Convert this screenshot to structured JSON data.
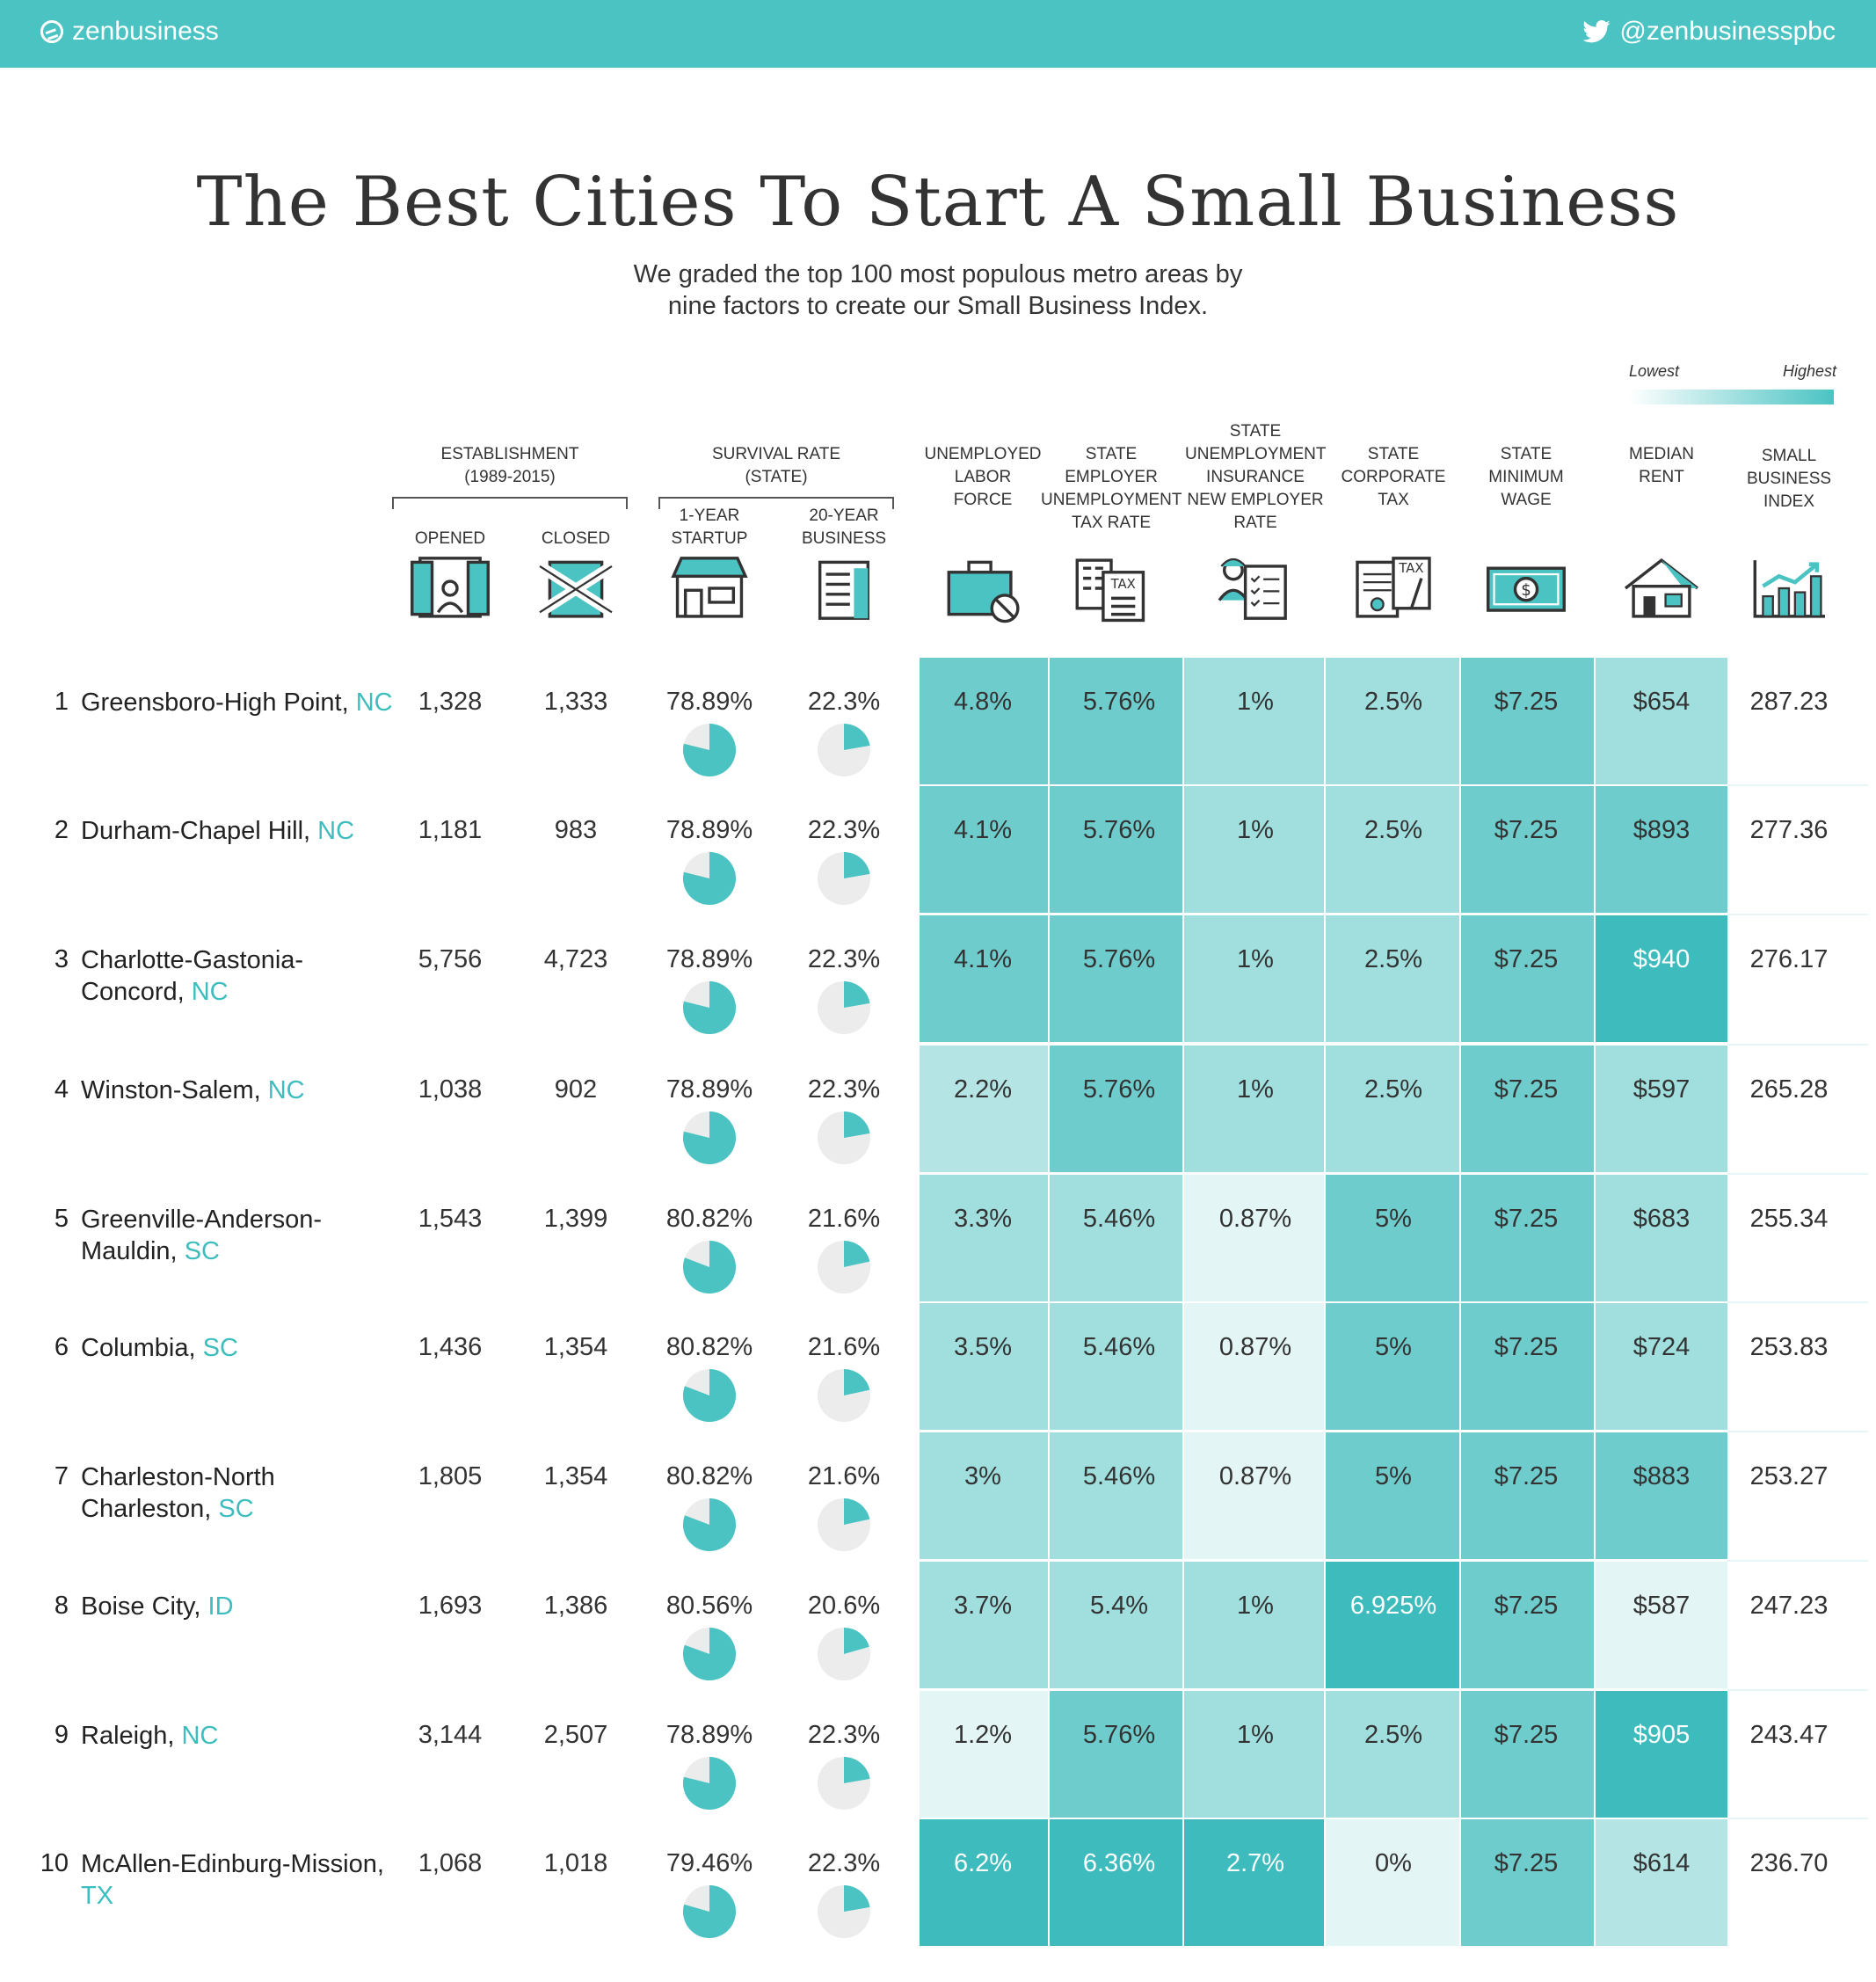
{
  "brand": "zenbusiness",
  "twitter": "@zenbusinesspbc",
  "title": "The Best Cities To Start A Small Business",
  "subtitle_line1": "We graded the top 100 most populous metro areas by",
  "subtitle_line2": "nine factors to create our Small Business Index.",
  "legend": {
    "low": "Lowest",
    "high": "Highest",
    "high_color": "#4bc3c3",
    "low_color": "#ffffff"
  },
  "headers": {
    "establishment": [
      "ESTABLISHMENT",
      "(1989-2015)"
    ],
    "survival": [
      "SURVIVAL RATE",
      "(STATE)"
    ],
    "opened": "OPENED",
    "closed": "CLOSED",
    "startup": [
      "1-YEAR",
      "STARTUP"
    ],
    "business": [
      "20-YEAR",
      "BUSINESS"
    ],
    "unemployed": [
      "UNEMPLOYED",
      "LABOR",
      "FORCE"
    ],
    "employer_tax": [
      "STATE",
      "EMPLOYER",
      "UNEMPLOYMENT",
      "TAX RATE"
    ],
    "insurance": [
      "STATE",
      "UNEMPLOYMENT",
      "INSURANCE",
      "NEW EMPLOYER",
      "RATE"
    ],
    "corporate": [
      "STATE",
      "CORPORATE",
      "TAX"
    ],
    "wage": [
      "STATE",
      "MINIMUM",
      "WAGE"
    ],
    "rent": [
      "MEDIAN",
      "RENT"
    ],
    "index": [
      "SMALL",
      "BUSINESS",
      "INDEX"
    ]
  },
  "icons": [
    "open-shop-icon",
    "closed-shop-icon",
    "storefront-icon",
    "office-building-icon",
    "briefcase-icon",
    "tax-form-icon",
    "worker-checklist-icon",
    "tax-document-icon",
    "dollar-bill-icon",
    "house-icon",
    "growth-chart-icon"
  ],
  "chart_data": {
    "type": "table",
    "columns": [
      "Opened",
      "Closed",
      "1-Year Startup",
      "20-Year Business",
      "Unemployed Labor Force",
      "State Employer Unemployment Tax Rate",
      "State Unemployment Insurance New Employer Rate",
      "State Corporate Tax",
      "State Minimum Wage",
      "Median Rent",
      "Small Business Index"
    ],
    "rows": [
      {
        "rank": "1",
        "city": "Greensboro-High Point,",
        "state": "NC",
        "opened": "1,328",
        "closed": "1,333",
        "startup": "78.89%",
        "business": "22.3%",
        "startup_value": 78.89,
        "business_value": 22.3,
        "unemployed": "4.8%",
        "employer_tax": "5.76%",
        "insurance": "1%",
        "corporate": "2.5%",
        "wage": "$7.25",
        "rent": "$654",
        "index": "287.23"
      },
      {
        "rank": "2",
        "city": "Durham-Chapel Hill,",
        "state": "NC",
        "opened": "1,181",
        "closed": "983",
        "startup": "78.89%",
        "business": "22.3%",
        "startup_value": 78.89,
        "business_value": 22.3,
        "unemployed": "4.1%",
        "employer_tax": "5.76%",
        "insurance": "1%",
        "corporate": "2.5%",
        "wage": "$7.25",
        "rent": "$893",
        "index": "277.36"
      },
      {
        "rank": "3",
        "city": "Charlotte-Gastonia-",
        "city2": "Concord,",
        "state": "NC",
        "opened": "5,756",
        "closed": "4,723",
        "startup": "78.89%",
        "business": "22.3%",
        "startup_value": 78.89,
        "business_value": 22.3,
        "unemployed": "4.1%",
        "employer_tax": "5.76%",
        "insurance": "1%",
        "corporate": "2.5%",
        "wage": "$7.25",
        "rent": "$940",
        "index": "276.17"
      },
      {
        "rank": "4",
        "city": "Winston-Salem,",
        "state": "NC",
        "opened": "1,038",
        "closed": "902",
        "startup": "78.89%",
        "business": "22.3%",
        "startup_value": 78.89,
        "business_value": 22.3,
        "unemployed": "2.2%",
        "employer_tax": "5.76%",
        "insurance": "1%",
        "corporate": "2.5%",
        "wage": "$7.25",
        "rent": "$597",
        "index": "265.28"
      },
      {
        "rank": "5",
        "city": "Greenville-Anderson-",
        "city2": "Mauldin,",
        "state": "SC",
        "opened": "1,543",
        "closed": "1,399",
        "startup": "80.82%",
        "business": "21.6%",
        "startup_value": 80.82,
        "business_value": 21.6,
        "unemployed": "3.3%",
        "employer_tax": "5.46%",
        "insurance": "0.87%",
        "corporate": "5%",
        "wage": "$7.25",
        "rent": "$683",
        "index": "255.34"
      },
      {
        "rank": "6",
        "city": "Columbia,",
        "state": "SC",
        "opened": "1,436",
        "closed": "1,354",
        "startup": "80.82%",
        "business": "21.6%",
        "startup_value": 80.82,
        "business_value": 21.6,
        "unemployed": "3.5%",
        "employer_tax": "5.46%",
        "insurance": "0.87%",
        "corporate": "5%",
        "wage": "$7.25",
        "rent": "$724",
        "index": "253.83"
      },
      {
        "rank": "7",
        "city": "Charleston-North",
        "city2": "Charleston,",
        "state": "SC",
        "opened": "1,805",
        "closed": "1,354",
        "startup": "80.82%",
        "business": "21.6%",
        "startup_value": 80.82,
        "business_value": 21.6,
        "unemployed": "3%",
        "employer_tax": "5.46%",
        "insurance": "0.87%",
        "corporate": "5%",
        "wage": "$7.25",
        "rent": "$883",
        "index": "253.27"
      },
      {
        "rank": "8",
        "city": "Boise City,",
        "state": "ID",
        "opened": "1,693",
        "closed": "1,386",
        "startup": "80.56%",
        "business": "20.6%",
        "startup_value": 80.56,
        "business_value": 20.6,
        "unemployed": "3.7%",
        "employer_tax": "5.4%",
        "insurance": "1%",
        "corporate": "6.925%",
        "wage": "$7.25",
        "rent": "$587",
        "index": "247.23"
      },
      {
        "rank": "9",
        "city": "Raleigh,",
        "state": "NC",
        "opened": "3,144",
        "closed": "2,507",
        "startup": "78.89%",
        "business": "22.3%",
        "startup_value": 78.89,
        "business_value": 22.3,
        "unemployed": "1.2%",
        "employer_tax": "5.76%",
        "insurance": "1%",
        "corporate": "2.5%",
        "wage": "$7.25",
        "rent": "$905",
        "index": "243.47"
      },
      {
        "rank": "10",
        "city": "McAllen-Edinburg-Mission,",
        "city2": "",
        "state": "TX",
        "state_on_line2": true,
        "opened": "1,068",
        "closed": "1,018",
        "startup": "79.46%",
        "business": "22.3%",
        "startup_value": 79.46,
        "business_value": 22.3,
        "unemployed": "6.2%",
        "employer_tax": "6.36%",
        "insurance": "2.7%",
        "corporate": "0%",
        "wage": "$7.25",
        "rent": "$614",
        "index": "236.70"
      }
    ],
    "heat_levels": {
      "unemployed": [
        3,
        3,
        3,
        1,
        2,
        2,
        2,
        2,
        0,
        4
      ],
      "employer_tax": [
        3,
        3,
        3,
        3,
        2,
        2,
        2,
        2,
        3,
        4
      ],
      "insurance": [
        2,
        2,
        2,
        2,
        0,
        0,
        0,
        2,
        2,
        4
      ],
      "corporate": [
        2,
        2,
        2,
        2,
        3,
        3,
        3,
        4,
        2,
        0
      ],
      "wage": [
        3,
        3,
        3,
        3,
        3,
        3,
        3,
        3,
        3,
        3
      ],
      "rent": [
        2,
        3,
        4,
        2,
        2,
        2,
        3,
        0,
        4,
        1
      ]
    }
  }
}
